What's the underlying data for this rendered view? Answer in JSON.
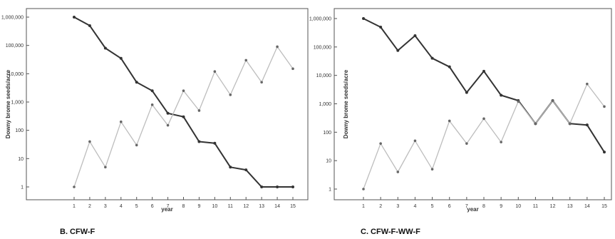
{
  "colors": {
    "series_dark": "#333333",
    "series_light": "#bdbdbd",
    "frame": "#555555",
    "marker": "#666666"
  },
  "chart_data": [
    {
      "type": "line",
      "panel_label": "B. CFW-F",
      "xlabel": "year",
      "ylabel": "Downy brome seeds/acre",
      "y_scale": "log",
      "ylim": [
        1,
        1000000
      ],
      "y_ticks": [
        1,
        10,
        100,
        1000,
        10000,
        100000,
        1000000
      ],
      "y_tick_labels": [
        "1",
        "10",
        "100",
        "1,000",
        "10,000",
        "100,000",
        "1,000,000"
      ],
      "x": [
        1,
        2,
        3,
        4,
        5,
        6,
        7,
        8,
        9,
        10,
        11,
        12,
        13,
        14,
        15
      ],
      "x_tick_labels": [
        "1",
        "2",
        "3",
        "4",
        "5",
        "6",
        "7",
        "8",
        "9",
        "10",
        "11",
        "12",
        "13",
        "14",
        "15"
      ],
      "grid": false,
      "series": [
        {
          "style": "dark",
          "values": [
            1000000,
            500000,
            80000,
            35000,
            5000,
            2500,
            400,
            300,
            40,
            35,
            5,
            4,
            1,
            1,
            1
          ]
        },
        {
          "style": "light",
          "values": [
            1,
            40,
            5,
            200,
            30,
            800,
            150,
            2500,
            500,
            12000,
            1800,
            30000,
            5000,
            90000,
            15000
          ]
        }
      ]
    },
    {
      "type": "line",
      "panel_label": "C. CFW-F-WW-F",
      "xlabel": "year",
      "ylabel": "Downy brome seeds/acre",
      "y_scale": "log",
      "ylim": [
        1,
        1000000
      ],
      "y_ticks": [
        1,
        10,
        100,
        1000,
        10000,
        100000,
        1000000
      ],
      "y_tick_labels": [
        "1",
        "10",
        "100",
        "1,000",
        "10,000",
        "100,000",
        "1,000,000"
      ],
      "x": [
        1,
        2,
        3,
        4,
        5,
        6,
        7,
        8,
        9,
        10,
        11,
        12,
        13,
        14,
        15
      ],
      "x_tick_labels": [
        "1",
        "2",
        "3",
        "4",
        "5",
        "6",
        "7",
        "8",
        "9",
        "10",
        "11",
        "12",
        "13",
        "14",
        "15"
      ],
      "grid": false,
      "series": [
        {
          "style": "dark",
          "values": [
            1000000,
            500000,
            75000,
            250000,
            40000,
            20000,
            2500,
            14000,
            2000,
            1300,
            200,
            1300,
            200,
            180,
            20
          ]
        },
        {
          "style": "light",
          "values": [
            1,
            40,
            4,
            50,
            5,
            250,
            40,
            300,
            45,
            1200,
            200,
            1300,
            200,
            5000,
            800
          ]
        }
      ]
    }
  ]
}
